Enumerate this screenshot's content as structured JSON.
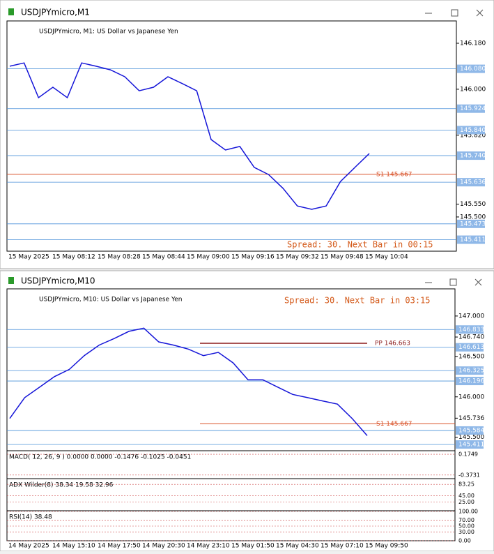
{
  "chart_data": [
    {
      "type": "line",
      "window_title": "USDJPYmicro,M1",
      "title": "USDJPYmicro, M1:  US Dollar vs Japanese Yen",
      "spread": "Spread: 30. Next Bar in 00:15",
      "ylim": [
        145.366,
        146.251
      ],
      "yticks": [
        {
          "value": 146.18,
          "label": "146.180"
        },
        {
          "value": 146.0,
          "label": "146.000"
        },
        {
          "value": 145.82,
          "label": "145.820"
        },
        {
          "value": 145.55,
          "label": "145.550"
        },
        {
          "value": 145.5,
          "label": "145.500"
        }
      ],
      "levels": [
        {
          "value": 146.08,
          "label": "146.080"
        },
        {
          "value": 145.924,
          "label": "145.924"
        },
        {
          "value": 145.84,
          "label": "145.840"
        },
        {
          "value": 145.74,
          "label": "145.740"
        },
        {
          "value": 145.636,
          "label": "145.636"
        },
        {
          "value": 145.473,
          "label": "145.473"
        },
        {
          "value": 145.411,
          "label": "145.411"
        }
      ],
      "support": {
        "value": 145.667,
        "label": "S1 145.667"
      },
      "time_labels": [
        "15 May 2025",
        "15 May 08:12",
        "15 May 08:28",
        "15 May 08:44",
        "15 May 09:00",
        "15 May 09:16",
        "15 May 09:32",
        "15 May 09:48",
        "15 May 10:04"
      ],
      "color": "#1515d8",
      "values": [
        146.09,
        146.103,
        145.967,
        146.008,
        145.967,
        146.103,
        146.09,
        146.076,
        146.049,
        145.994,
        146.008,
        146.049,
        146.022,
        145.994,
        145.803,
        145.762,
        145.776,
        145.694,
        145.666,
        145.612,
        145.543,
        145.53,
        145.543,
        145.639,
        145.694,
        145.748
      ]
    },
    {
      "type": "line",
      "window_title": "USDJPYmicro,M10",
      "title": "USDJPYmicro, M10:  US Dollar vs Japanese Yen",
      "spread": "Spread: 30. Next Bar in 03:15",
      "ylim": [
        145.342,
        147.284
      ],
      "yticks": [
        {
          "value": 147.0,
          "label": "147.000"
        },
        {
          "value": 146.74,
          "label": "146.740"
        },
        {
          "value": 146.5,
          "label": "146.500"
        },
        {
          "value": 146.0,
          "label": "146.000"
        },
        {
          "value": 145.736,
          "label": "145.736"
        },
        {
          "value": 145.5,
          "label": "145.500"
        }
      ],
      "levels": [
        {
          "value": 146.833,
          "label": "146.833"
        },
        {
          "value": 146.613,
          "label": "146.613"
        },
        {
          "value": 146.325,
          "label": "146.325"
        },
        {
          "value": 146.196,
          "label": "146.196"
        },
        {
          "value": 145.584,
          "label": "145.584"
        },
        {
          "value": 145.411,
          "label": "145.411"
        }
      ],
      "support": {
        "value": 145.667,
        "label": "S1 145.667"
      },
      "pivot": {
        "value": 146.663,
        "label": "PP 146.663"
      },
      "time_labels": [
        "14 May 2025",
        "14 May 15:10",
        "14 May 17:50",
        "14 May 20:30",
        "14 May 23:10",
        "15 May 01:50",
        "15 May 04:30",
        "15 May 07:10",
        "15 May 09:50"
      ],
      "color": "#1515d8",
      "values": [
        145.733,
        145.99,
        146.12,
        146.25,
        146.34,
        146.51,
        146.64,
        146.72,
        146.81,
        146.85,
        146.68,
        146.64,
        146.59,
        146.51,
        146.55,
        146.42,
        146.21,
        146.21,
        146.12,
        146.03,
        145.99,
        145.95,
        145.91,
        145.73,
        145.52
      ],
      "indicators": [
        {
          "label": "MACD( 12, 26, 9 ) 0.0000 0.0000 -0.1476 -0.1025 -0.0451",
          "yticks": [
            0.1749,
            -0.3731
          ],
          "ylim": [
            -0.45,
            0.25
          ]
        },
        {
          "label": "ADX Wilder(8) 38.34 19.58 32.96",
          "yticks": [
            83.25,
            {
              "value": 45,
              "label": "45.00"
            },
            {
              "value": 25,
              "label": "25.00"
            }
          ],
          "ylim": [
            0,
            100
          ]
        },
        {
          "label": "RSI(14) 38.48",
          "yticks": [
            {
              "value": 100,
              "label": "100.00"
            },
            {
              "value": 70,
              "label": "70.00"
            },
            {
              "value": 50,
              "label": "50.00"
            },
            {
              "value": 30,
              "label": "30.00"
            },
            {
              "value": 0,
              "label": "0.00"
            }
          ],
          "ylim": [
            0,
            100
          ]
        }
      ]
    }
  ]
}
